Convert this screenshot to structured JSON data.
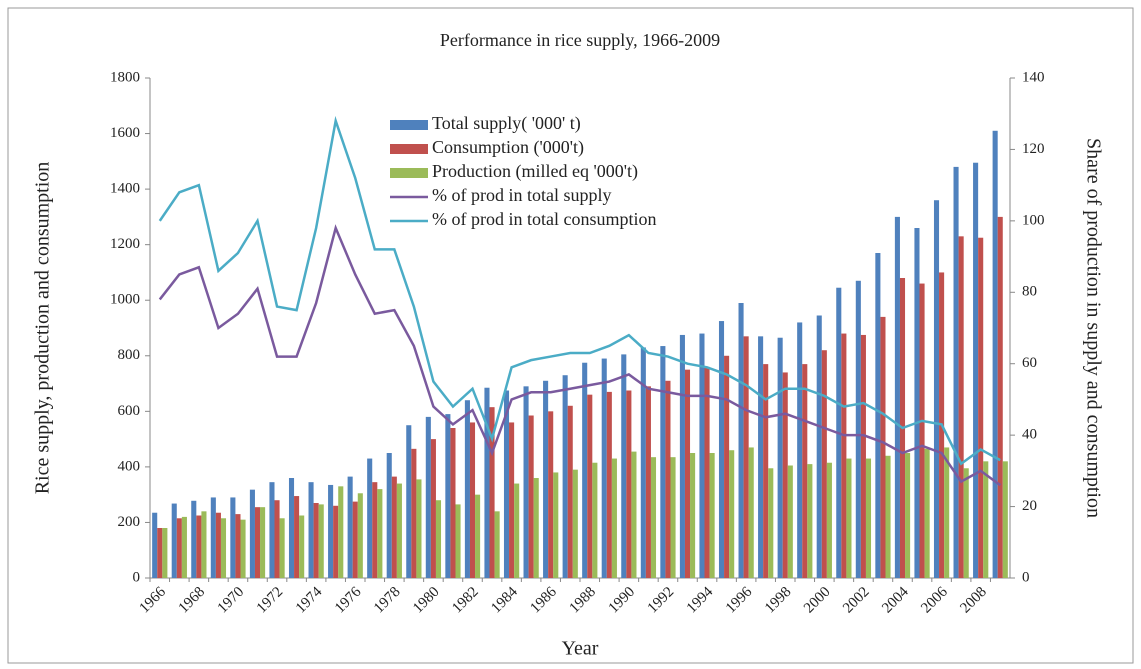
{
  "chart_data": {
    "type": "bar-line",
    "title": "Performance in rice supply,  1966-2009",
    "xlabel": "Year",
    "ylabel": "Rice supply, production and consumption",
    "y2label": "Share of production in supply and consumption",
    "categories": [
      "1966",
      null,
      "1968",
      null,
      "1970",
      null,
      "1972",
      null,
      "1974",
      null,
      "1976",
      null,
      "1978",
      null,
      "1980",
      null,
      "1982",
      null,
      "1984",
      null,
      "1986",
      null,
      "1988",
      null,
      "1990",
      null,
      "1992",
      null,
      "1994",
      null,
      "1996",
      null,
      "1998",
      null,
      "2000",
      null,
      "2002",
      null,
      "2004",
      null,
      "2006",
      null,
      "2008",
      null
    ],
    "ylim": [
      0,
      1800
    ],
    "yticks": [
      0,
      200,
      400,
      600,
      800,
      1000,
      1200,
      1400,
      1600,
      1800
    ],
    "y2lim": [
      0,
      140
    ],
    "y2ticks": [
      0,
      20,
      40,
      60,
      80,
      100,
      120,
      140
    ],
    "series": [
      {
        "name": "Total supply( '000' t)",
        "kind": "bar",
        "color": "#4f81bd",
        "values": [
          235,
          268,
          278,
          290,
          290,
          318,
          345,
          360,
          345,
          335,
          365,
          430,
          450,
          550,
          580,
          590,
          640,
          685,
          675,
          690,
          710,
          730,
          775,
          790,
          805,
          830,
          835,
          875,
          880,
          925,
          990,
          870,
          865,
          920,
          945,
          1045,
          1070,
          1170,
          1300,
          1260,
          1360,
          1480,
          1495,
          1610
        ]
      },
      {
        "name": "Consumption ('000't)",
        "kind": "bar",
        "color": "#c0504d",
        "values": [
          180,
          215,
          225,
          235,
          230,
          255,
          280,
          295,
          270,
          260,
          275,
          345,
          365,
          465,
          500,
          540,
          560,
          615,
          560,
          585,
          600,
          620,
          660,
          670,
          675,
          690,
          710,
          750,
          760,
          800,
          870,
          770,
          740,
          770,
          820,
          880,
          875,
          940,
          1080,
          1060,
          1100,
          1230,
          1225,
          1300
        ]
      },
      {
        "name": "Production (milled eq '000't)",
        "kind": "bar",
        "color": "#9bbb59",
        "values": [
          180,
          220,
          240,
          215,
          210,
          255,
          215,
          225,
          265,
          330,
          305,
          320,
          340,
          355,
          280,
          265,
          300,
          240,
          340,
          360,
          380,
          390,
          415,
          430,
          455,
          435,
          435,
          450,
          450,
          460,
          470,
          395,
          405,
          410,
          415,
          430,
          430,
          440,
          450,
          465,
          470,
          395,
          420,
          420
        ]
      },
      {
        "name": "% of prod in total supply",
        "kind": "line",
        "axis": "y2",
        "color": "#7a5a9e",
        "values": [
          78,
          85,
          87,
          70,
          74,
          81,
          62,
          62,
          77,
          98,
          85,
          74,
          75,
          65,
          48,
          43,
          47,
          35,
          50,
          52,
          52,
          53,
          54,
          55,
          57,
          53,
          52,
          51,
          51,
          50,
          47,
          45,
          46,
          44,
          42,
          40,
          40,
          38,
          35,
          37,
          35,
          27,
          30,
          26
        ]
      },
      {
        "name": "% of prod in total consumption",
        "kind": "line",
        "axis": "y2",
        "color": "#4bacc6",
        "values": [
          100,
          108,
          110,
          86,
          91,
          100,
          76,
          75,
          98,
          128,
          112,
          92,
          92,
          76,
          55,
          48,
          53,
          39,
          59,
          61,
          62,
          63,
          63,
          65,
          68,
          63,
          62,
          60,
          59,
          57,
          54,
          50,
          53,
          53,
          51,
          48,
          49,
          46,
          42,
          44,
          43,
          32,
          36,
          33
        ]
      }
    ]
  }
}
